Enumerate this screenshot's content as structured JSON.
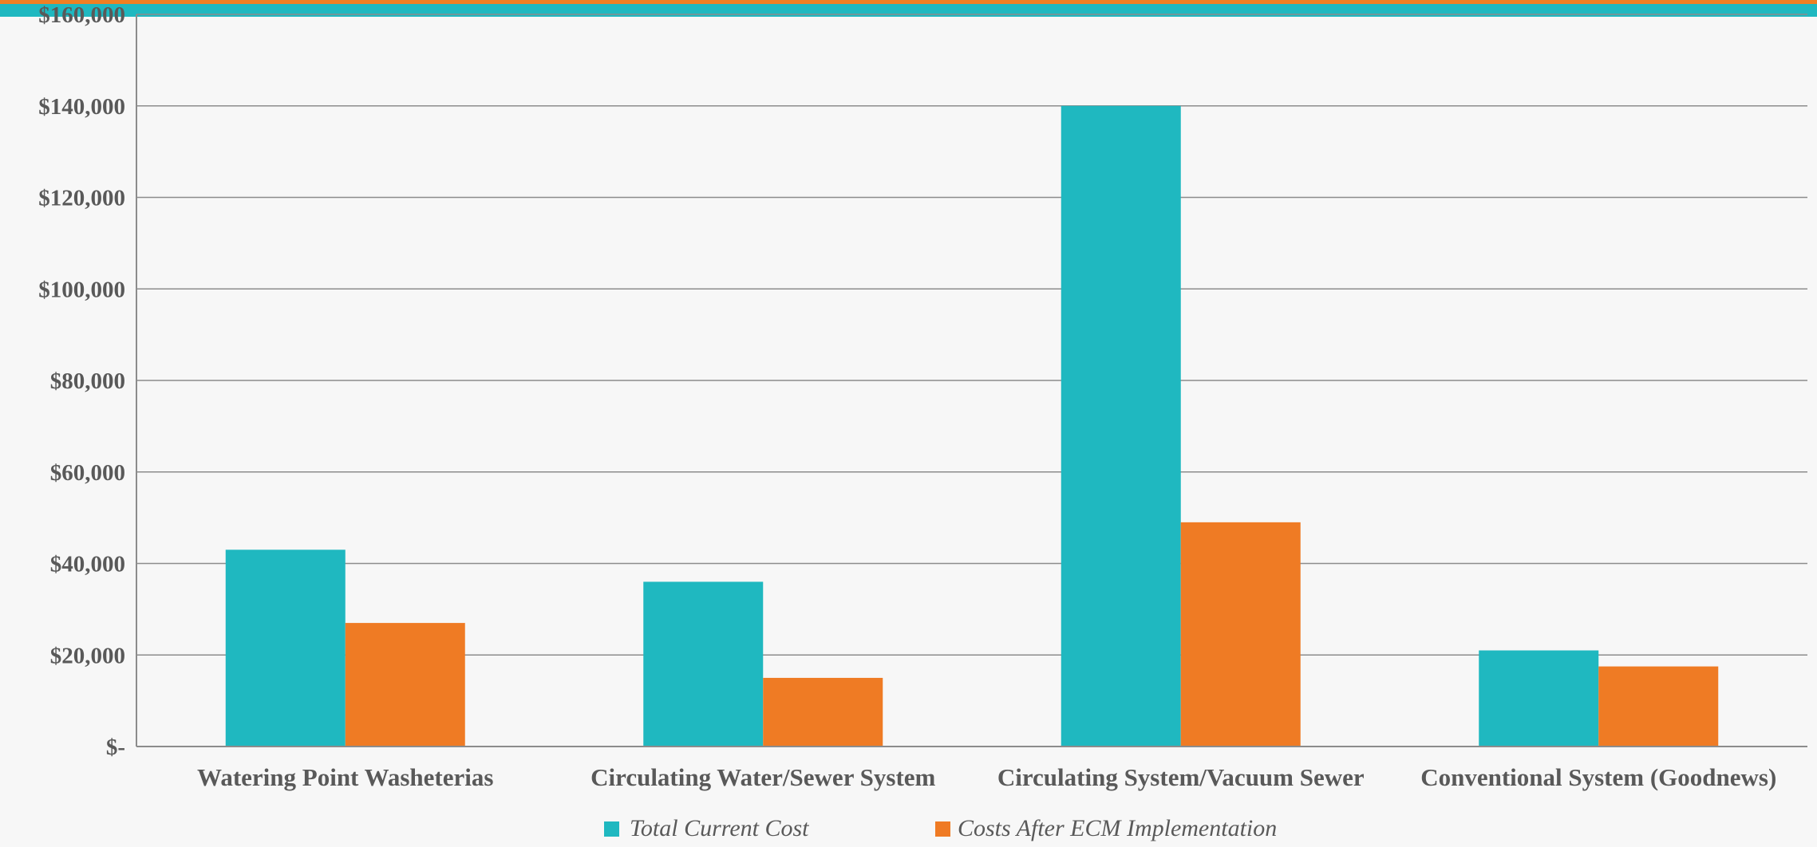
{
  "colors": {
    "background": "#f7f7f7",
    "top_band_orange": "#f07f23",
    "top_band_teal": "#1fb8c0",
    "series_1": "#1fb8c0",
    "series_2": "#ef7b24",
    "grid": "#8c8c8c",
    "text": "#595959"
  },
  "chart_data": {
    "type": "bar",
    "categories": [
      "Watering Point Washeterias",
      "Circulating Water/Sewer System",
      "Circulating System/Vacuum Sewer",
      "Conventional System (Goodnews)"
    ],
    "series": [
      {
        "name": "Total Current Cost",
        "color": "#1fb8c0",
        "values": [
          43000,
          36000,
          140000,
          21000
        ]
      },
      {
        "name": "Costs After ECM Implementation",
        "color": "#ef7b24",
        "values": [
          27000,
          15000,
          49000,
          17500
        ]
      }
    ],
    "yticks": [
      0,
      20000,
      40000,
      60000,
      80000,
      100000,
      120000,
      140000,
      160000
    ],
    "ytick_labels": [
      "$-",
      "$20,000",
      "$40,000",
      "$60,000",
      "$80,000",
      "$100,000",
      "$120,000",
      "$140,000",
      "$160,000"
    ],
    "ylim": [
      0,
      160000
    ],
    "grid": true,
    "legend_position": "bottom",
    "title": "",
    "xlabel": "",
    "ylabel": ""
  }
}
